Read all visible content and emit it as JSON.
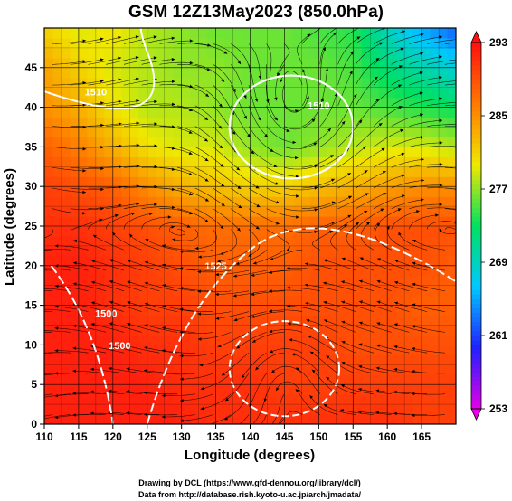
{
  "chart_data": {
    "type": "heatmap",
    "title": "GSM 12Z13May2023 (850.0hPa)",
    "xlabel": "Longitude (degrees)",
    "ylabel": "Latitude (degrees)",
    "xlim": [
      110,
      170
    ],
    "ylim": [
      0,
      50
    ],
    "x_ticks": [
      110,
      115,
      120,
      125,
      130,
      135,
      140,
      145,
      150,
      155,
      160,
      165
    ],
    "y_ticks": [
      0,
      5,
      10,
      15,
      20,
      25,
      30,
      35,
      40,
      45
    ],
    "grid": true,
    "colorbar": {
      "ticks": [
        253,
        261,
        269,
        277,
        285,
        293
      ],
      "range": [
        253,
        293
      ],
      "colors": [
        "#e600e6",
        "#2020ff",
        "#00c8ff",
        "#00e060",
        "#f0e800",
        "#ff7a00",
        "#ff1010"
      ]
    },
    "contour_labels": [
      {
        "text": "1510",
        "lon": 117.5,
        "lat": 41.5
      },
      {
        "text": "1510",
        "lon": 150,
        "lat": 39.8
      },
      {
        "text": "1525",
        "lon": 135,
        "lat": 19.5
      },
      {
        "text": "1500",
        "lon": 119,
        "lat": 13.5
      },
      {
        "text": "1500",
        "lon": 121,
        "lat": 9.5
      }
    ],
    "temperature_field": {
      "note": "approximate 850hPa temperature (K) on regular grid",
      "lon": [
        110,
        115,
        120,
        125,
        130,
        135,
        140,
        145,
        150,
        155,
        160,
        165,
        170
      ],
      "lat": [
        50,
        45,
        40,
        35,
        30,
        25,
        20,
        15,
        10,
        5,
        0
      ],
      "values": [
        [
          281,
          279,
          280,
          278,
          277,
          276,
          276,
          276,
          275,
          274,
          269,
          265,
          262
        ],
        [
          284,
          281,
          279,
          278,
          277,
          277,
          276,
          276,
          276,
          275,
          272,
          270,
          268
        ],
        [
          285,
          283,
          280,
          278,
          278,
          277,
          276,
          276,
          276,
          276,
          275,
          274,
          273
        ],
        [
          288,
          286,
          283,
          280,
          279,
          279,
          277,
          276,
          277,
          278,
          279,
          279,
          278
        ],
        [
          290,
          289,
          288,
          285,
          283,
          282,
          281,
          281,
          282,
          283,
          284,
          285,
          285
        ],
        [
          291,
          291,
          290,
          289,
          288,
          287,
          287,
          287,
          288,
          288,
          289,
          289,
          289
        ],
        [
          292,
          292,
          291,
          290,
          289,
          288,
          288,
          288,
          289,
          289,
          289,
          289,
          288
        ],
        [
          292,
          292,
          291,
          290,
          290,
          289,
          289,
          289,
          289,
          289,
          289,
          288,
          288
        ],
        [
          292,
          292,
          292,
          291,
          291,
          290,
          290,
          290,
          290,
          289,
          289,
          289,
          289
        ],
        [
          292,
          292,
          292,
          292,
          291,
          291,
          291,
          290,
          290,
          290,
          290,
          290,
          290
        ],
        [
          292,
          292,
          292,
          292,
          292,
          291,
          291,
          291,
          291,
          291,
          291,
          290,
          290
        ]
      ]
    }
  },
  "credits": {
    "line1": "Drawing by DCL (https://www.gfd-dennou.org/library/dcl/)",
    "line2": "Data from http://database.rish.kyoto-u.ac.jp/arch/jmadata/"
  }
}
